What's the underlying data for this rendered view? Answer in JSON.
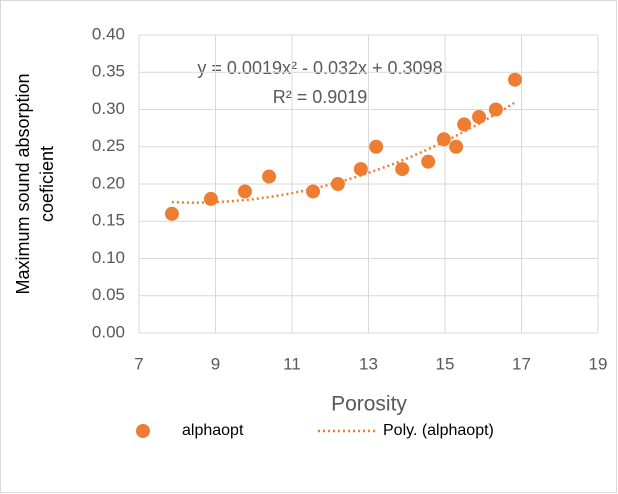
{
  "chart_data": {
    "type": "scatter",
    "x_label": "Porosity",
    "y_label": [
      "Maximum sound absorption",
      "coeficient"
    ],
    "x": [
      7.86,
      8.88,
      9.77,
      10.4,
      11.55,
      12.2,
      12.8,
      13.2,
      13.88,
      14.56,
      14.97,
      15.29,
      15.5,
      15.89,
      16.33,
      16.83
    ],
    "series": [
      {
        "name": "alphaopt",
        "color": "#ed7d31",
        "values": [
          0.16,
          0.18,
          0.19,
          0.21,
          0.19,
          0.2,
          0.22,
          0.25,
          0.22,
          0.23,
          0.26,
          0.25,
          0.28,
          0.29,
          0.3,
          0.34
        ]
      }
    ],
    "trendline": {
      "name": "Poly. (alphaopt)",
      "color": "#ed7d31",
      "equation": "y = 0.0019x² - 0.032x + 0.3098",
      "r2_label": "R² = 0.9019",
      "coefficients": [
        0.0019,
        -0.032,
        0.3098
      ]
    },
    "xlim": [
      7,
      19
    ],
    "xticks": [
      7,
      9,
      11,
      13,
      15,
      17,
      19
    ],
    "ylim": [
      0,
      0.4
    ],
    "yticks": [
      {
        "value": 0,
        "label": "0.00"
      },
      {
        "value": 0.05,
        "label": "0.05"
      },
      {
        "value": 0.1,
        "label": "0.10"
      },
      {
        "value": 0.15,
        "label": "0.15"
      },
      {
        "value": 0.2,
        "label": "0.20"
      },
      {
        "value": 0.25,
        "label": "0.25"
      },
      {
        "value": 0.3,
        "label": "0.30"
      },
      {
        "value": 0.35,
        "label": "0.35"
      },
      {
        "value": 0.4,
        "label": "0.40"
      }
    ],
    "grid": true,
    "legend": "bottom"
  }
}
